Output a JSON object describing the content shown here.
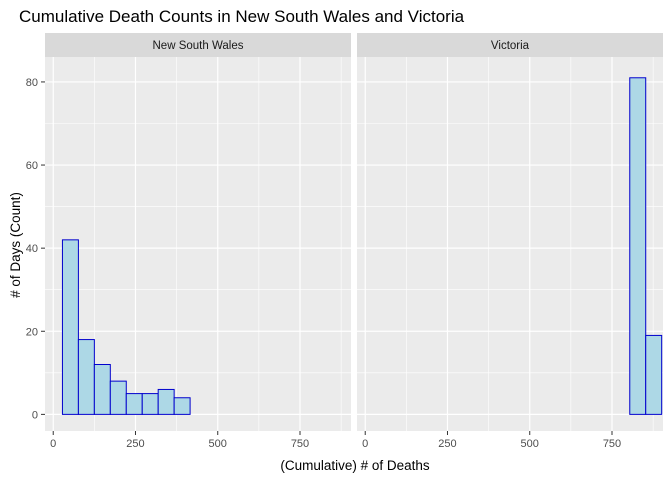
{
  "chart_data": {
    "type": "histogram",
    "title": "Cumulative Death Counts in New South Wales and Victoria",
    "xlabel": "(Cumulative) # of Deaths",
    "ylabel": "# of Days (Count)",
    "xlim": [
      -25,
      905
    ],
    "ylim": [
      -4,
      86
    ],
    "x_ticks": [
      0,
      250,
      500,
      750
    ],
    "y_ticks": [
      0,
      20,
      40,
      60,
      80
    ],
    "bin_width": 48.5,
    "first_bin_left": 28,
    "colors": {
      "fill": "#ADD8E6",
      "outline": "#0000CD",
      "panel": "#EBEBEB",
      "strip": "#D9D9D9",
      "grid": "#FFFFFF"
    },
    "panels": [
      {
        "name": "New South Wales",
        "counts": [
          42,
          18,
          12,
          8,
          5,
          5,
          6,
          4,
          0,
          0,
          0,
          0,
          0,
          0,
          0,
          0,
          0,
          0
        ]
      },
      {
        "name": "Victoria",
        "counts": [
          0,
          0,
          0,
          0,
          0,
          0,
          0,
          0,
          0,
          0,
          0,
          0,
          0,
          0,
          0,
          0,
          81,
          19
        ]
      }
    ]
  }
}
